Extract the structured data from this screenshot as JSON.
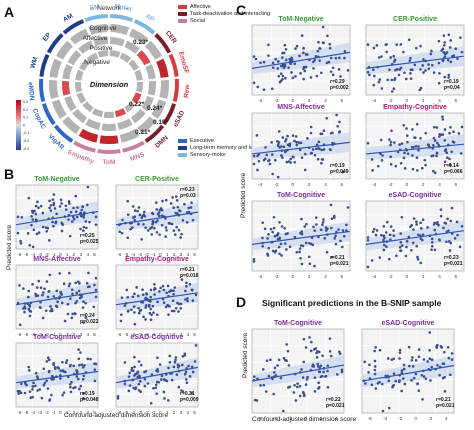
{
  "panels": {
    "a": "A",
    "b": "B",
    "c": "C",
    "d": "D"
  },
  "colors": {
    "pos": "#b8cc6e",
    "neg": "#6a1f78",
    "dot": "#3a4f8f",
    "line": "#2d55b5",
    "band": "#c9d6ee",
    "affective": "#d63b3b",
    "tsi": "#7a1f2a",
    "social": "#c97fa0",
    "executive": "#2f66c9",
    "ltm": "#1f3c8f",
    "sensory": "#7fb6e0",
    "green": "#3a9a3a",
    "purple": "#7a2fa0",
    "magenta": "#b0197a"
  },
  "circle": {
    "network_label": "← Network →",
    "dimension_label": "Dimension",
    "affective_text": "Affective",
    "cognitive_text": "Cognitive",
    "positive_text": "Positive",
    "negative_text": "Negative",
    "legend_top": [
      "Affective",
      "Task-deactivation and interacting",
      "Social"
    ],
    "legend_bottom": [
      "Executive",
      "Long-term memory and language",
      "Sensory-motor"
    ],
    "colorbar_label": "Correlation coefficient",
    "colorbar_ticks": [
      "0.3",
      "0.2",
      "0.1",
      "0",
      "-0.1",
      "-0.2",
      "-0.3"
    ],
    "values": [
      "0.23*",
      "0.22*",
      "0.24*",
      "0.19*",
      "0.21*"
    ],
    "networks": [
      "Motor",
      "AP",
      "CER",
      "EmoSF",
      "Rew",
      "eSAD",
      "DMN",
      "MNS",
      "ToM",
      "Empathy",
      "VigAtt",
      "CopAC",
      "eMDN",
      "WM",
      "EP",
      "AM",
      "SM"
    ]
  },
  "axis_texts": {
    "ylabel": "Predicted score",
    "xlabel": "Confound-adjusted dimension score"
  },
  "ticks": {
    "xB": [
      "-6",
      "-5",
      "-4",
      "-3",
      "-2",
      "-1",
      "0",
      "1",
      "2",
      "3",
      "4",
      "5"
    ],
    "xC": [
      "-4",
      "-2",
      "0",
      "2",
      "4",
      "6"
    ],
    "xD": [
      "-6",
      "-4",
      "-2",
      "0",
      "2",
      "4"
    ]
  },
  "chart_data": [
    {
      "panel": "B",
      "title": "ToM-Negative",
      "title_color": "green",
      "type": "scatter",
      "stats": [
        "r=0.25",
        "p=0.025"
      ],
      "r": 0.25,
      "p": 0.025
    },
    {
      "panel": "B",
      "title": "CER-Positive",
      "title_color": "green",
      "type": "scatter",
      "stats": [
        "r=0.23",
        "p=0.03"
      ],
      "r": 0.23,
      "p": 0.03
    },
    {
      "panel": "B",
      "title": "MNS-Affective",
      "title_color": "purple",
      "type": "scatter",
      "stats": [
        "r=0.24",
        "p=0.022"
      ],
      "r": 0.24,
      "p": 0.022
    },
    {
      "panel": "B",
      "title": "Empathy-Cognitive",
      "title_color": "magenta",
      "type": "scatter",
      "stats": [
        "r=0.21",
        "p=0.018"
      ],
      "r": 0.21,
      "p": 0.018
    },
    {
      "panel": "B",
      "title": "ToM-Cognitive",
      "title_color": "purple",
      "type": "scatter",
      "stats": [
        "r=0.19",
        "p=0.048"
      ],
      "r": 0.19,
      "p": 0.048
    },
    {
      "panel": "B",
      "title": "eSAD-Cognitive",
      "title_color": "purple",
      "type": "scatter",
      "stats": [
        "r=0.31",
        "p=0.009"
      ],
      "r": 0.31,
      "p": 0.009
    },
    {
      "panel": "C",
      "title": "ToM-Negative",
      "title_color": "green",
      "type": "scatter",
      "stats": [
        "r=0.29",
        "p=0.002"
      ],
      "r": 0.29,
      "p": 0.002
    },
    {
      "panel": "C",
      "title": "CER-Positive",
      "title_color": "green",
      "type": "scatter",
      "stats": [
        "r=0.19",
        "p=0.04"
      ],
      "r": 0.19,
      "p": 0.04
    },
    {
      "panel": "C",
      "title": "MNS-Affective",
      "title_color": "purple",
      "type": "scatter",
      "stats": [
        "r=0.19",
        "p=0.049"
      ],
      "r": 0.19,
      "p": 0.049
    },
    {
      "panel": "C",
      "title": "Empathy-Cognitive",
      "title_color": "magenta",
      "type": "scatter",
      "stats": [
        "r=0.14",
        "p=0.066"
      ],
      "r": 0.14,
      "p": 0.066
    },
    {
      "panel": "C",
      "title": "ToM-Cognitive",
      "title_color": "purple",
      "type": "scatter",
      "stats": [
        "r=0.21",
        "p=0.021"
      ],
      "r": 0.21,
      "p": 0.021
    },
    {
      "panel": "C",
      "title": "eSAD-Cognitive",
      "title_color": "purple",
      "type": "scatter",
      "stats": [
        "r=0.23",
        "p=0.021"
      ],
      "r": 0.23,
      "p": 0.021
    },
    {
      "panel": "D",
      "title": "ToM-Cognitive",
      "title_color": "purple",
      "type": "scatter",
      "stats": [
        "r=0.22",
        "p=0.021"
      ],
      "r": 0.22,
      "p": 0.021
    },
    {
      "panel": "D",
      "title": "eSAD-Cognitive",
      "title_color": "purple",
      "type": "scatter",
      "stats": [
        "r=0.21",
        "p=0.021"
      ],
      "r": 0.21,
      "p": 0.021
    }
  ],
  "d_title": "Significant predictions in the B-SNIP sample"
}
